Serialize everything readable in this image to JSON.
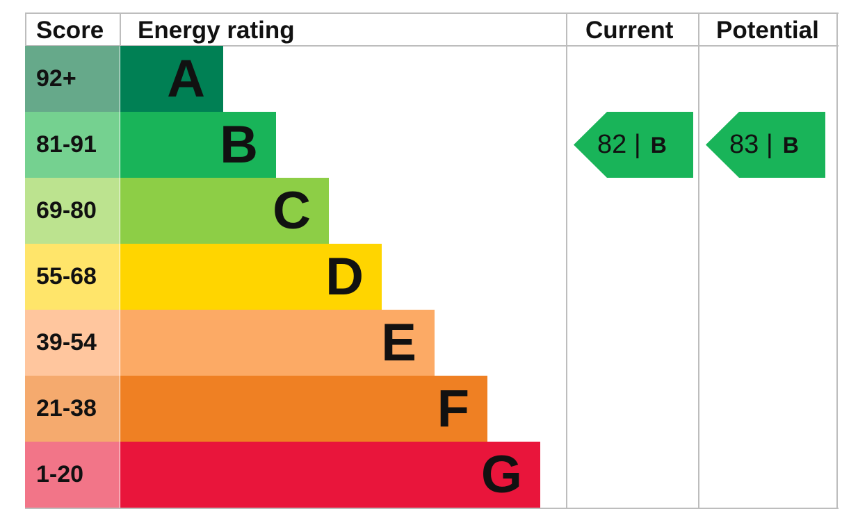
{
  "headers": {
    "score": "Score",
    "energy_rating": "Energy rating",
    "current": "Current",
    "potential": "Potential"
  },
  "chart_data": {
    "type": "bar",
    "categories": [
      "A",
      "B",
      "C",
      "D",
      "E",
      "F",
      "G"
    ],
    "score_ranges": [
      "92+",
      "81-91",
      "69-80",
      "55-68",
      "39-54",
      "21-38",
      "1-20"
    ],
    "bar_colors": [
      "#008054",
      "#19b459",
      "#8dce46",
      "#ffd500",
      "#fcaa65",
      "#ef8023",
      "#e9153b"
    ],
    "score_colors": [
      "#66a98a",
      "#75d190",
      "#bce38f",
      "#ffe56a",
      "#ffc69e",
      "#f5aa6e",
      "#f27588"
    ],
    "current": {
      "value": "82",
      "band": "B"
    },
    "potential": {
      "value": "83",
      "band": "B"
    },
    "marker_color": "#19b459"
  }
}
